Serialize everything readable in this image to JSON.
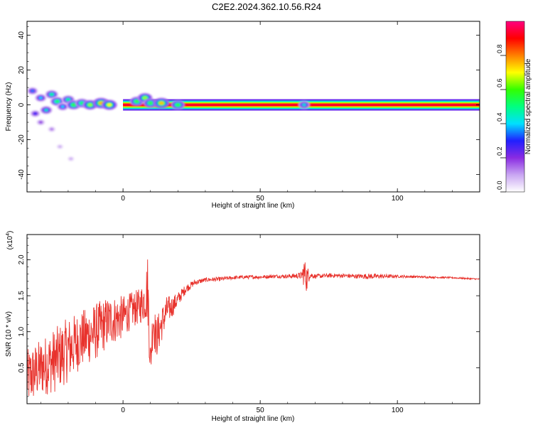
{
  "title": "C2E2.2024.362.10.56.R24",
  "chart_data": [
    {
      "type": "heatmap",
      "xlabel": "Height of straight line (km)",
      "ylabel": "Frequency (Hz)",
      "xlim": [
        -35,
        130
      ],
      "ylim": [
        -50,
        48
      ],
      "x_ticks": [
        0,
        50,
        100
      ],
      "y_ticks": [
        -40,
        -20,
        0,
        20,
        40
      ],
      "colorbar": {
        "label": "Normalized spectral amplitude",
        "range": [
          0,
          1
        ],
        "ticks": [
          0.0,
          0.2,
          0.4,
          0.6,
          0.8
        ],
        "tick_labels": [
          "0.0",
          "0.2",
          "0.4",
          "0.6",
          "0.8"
        ],
        "colors": [
          "#ffffff",
          "#c9a6f2",
          "#8a2be2",
          "#2020ff",
          "#00e0ff",
          "#00ff80",
          "#33ff00",
          "#ffff00",
          "#ff8000",
          "#ff0000",
          "#ff0080"
        ]
      },
      "features": [
        {
          "x": -33,
          "y": 8,
          "amp": 0.35
        },
        {
          "x": -30,
          "y": 4,
          "amp": 0.4
        },
        {
          "x": -28,
          "y": -3,
          "amp": 0.45
        },
        {
          "x": -26,
          "y": 6,
          "amp": 0.5
        },
        {
          "x": -24,
          "y": 2,
          "amp": 0.55
        },
        {
          "x": -22,
          "y": -1,
          "amp": 0.4
        },
        {
          "x": -20,
          "y": 3,
          "amp": 0.5
        },
        {
          "x": -18,
          "y": 0,
          "amp": 0.6
        },
        {
          "x": -15,
          "y": 1,
          "amp": 0.55
        },
        {
          "x": -12,
          "y": 0,
          "amp": 0.65
        },
        {
          "x": -8,
          "y": 1,
          "amp": 0.75
        },
        {
          "x": -5,
          "y": 0,
          "amp": 0.7
        },
        {
          "x": 5,
          "y": 2,
          "amp": 0.6
        },
        {
          "x": 8,
          "y": 4,
          "amp": 0.65
        },
        {
          "x": 10,
          "y": 1,
          "amp": 0.6
        },
        {
          "x": 14,
          "y": 1,
          "amp": 0.75
        },
        {
          "x": 20,
          "y": 0,
          "amp": 0.6
        },
        {
          "x": 66,
          "y": 0,
          "amp": 0.45
        },
        {
          "x": -32,
          "y": -5,
          "amp": 0.3
        },
        {
          "x": -30,
          "y": -10,
          "amp": 0.2
        },
        {
          "x": -26,
          "y": -14,
          "amp": 0.15
        },
        {
          "x": -23,
          "y": -24,
          "amp": 0.1
        },
        {
          "x": -19,
          "y": -31,
          "amp": 0.1
        }
      ],
      "band": {
        "x_start": 0,
        "x_end": 130,
        "y": 0,
        "amp": 0.95
      }
    },
    {
      "type": "line",
      "xlabel": "Height of straight line (km)",
      "ylabel": "SNR (10 * v/v)",
      "y_multiplier": "(x10",
      "y_multiplier_exp": "4",
      "y_multiplier_close": ")",
      "xlim": [
        -35,
        130
      ],
      "ylim": [
        0.0,
        2.35
      ],
      "x_ticks": [
        0,
        50,
        100
      ],
      "y_ticks": [
        0.5,
        1.0,
        1.5,
        2.0
      ],
      "y_tick_labels": [
        "0.5",
        "1.0",
        "1.5",
        "2.0"
      ],
      "line_color": "#e8322c",
      "series": [
        {
          "x": [
            -35,
            -30,
            -25,
            -20,
            -15,
            -10,
            -5,
            0,
            3,
            6,
            8,
            9,
            10,
            11,
            12,
            14,
            16,
            18,
            20,
            23,
            26,
            30,
            35,
            40,
            45,
            50,
            55,
            60,
            65,
            66,
            67,
            68,
            70,
            75,
            80,
            85,
            90,
            95,
            100,
            110,
            120,
            130
          ],
          "y": [
            0.35,
            0.5,
            0.6,
            0.75,
            0.9,
            1.0,
            1.15,
            1.2,
            1.3,
            1.35,
            1.45,
            1.6,
            0.55,
            1.2,
            0.9,
            1.1,
            1.3,
            1.35,
            1.45,
            1.6,
            1.68,
            1.72,
            1.73,
            1.75,
            1.76,
            1.76,
            1.77,
            1.77,
            1.78,
            1.82,
            1.74,
            1.79,
            1.77,
            1.78,
            1.78,
            1.77,
            1.77,
            1.77,
            1.77,
            1.76,
            1.75,
            1.73
          ],
          "noise": [
            0.4,
            0.4,
            0.45,
            0.45,
            0.4,
            0.4,
            0.35,
            0.3,
            0.25,
            0.25,
            0.3,
            0.5,
            0.3,
            0.3,
            0.3,
            0.25,
            0.2,
            0.15,
            0.1,
            0.06,
            0.04,
            0.03,
            0.03,
            0.025,
            0.025,
            0.025,
            0.025,
            0.025,
            0.05,
            0.2,
            0.2,
            0.05,
            0.03,
            0.03,
            0.03,
            0.03,
            0.04,
            0.03,
            0.02,
            0.015,
            0.01,
            0.01
          ]
        }
      ]
    }
  ]
}
